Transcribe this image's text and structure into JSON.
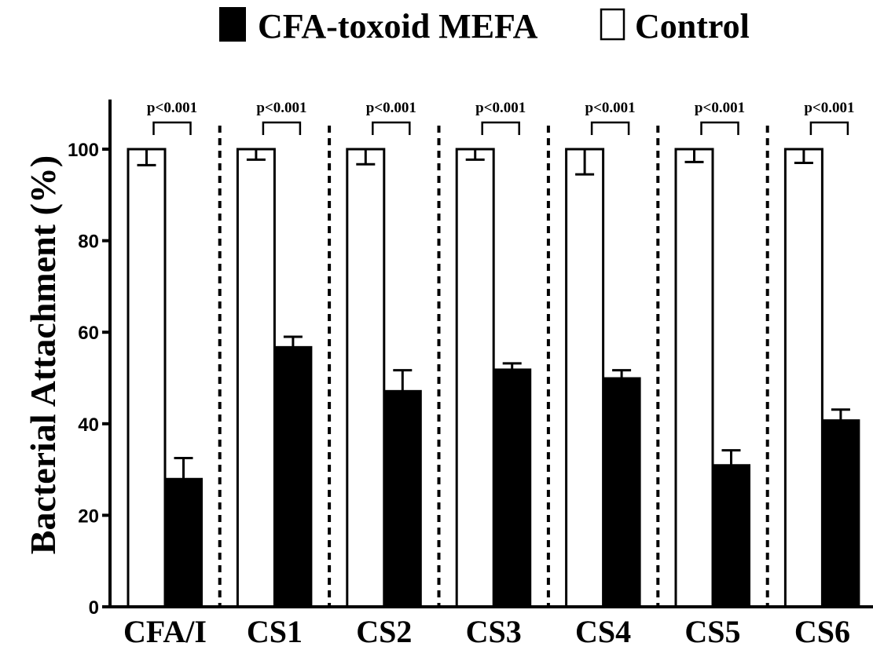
{
  "chart_data": {
    "type": "bar",
    "ylabel": "Bacterial Attachment (%)",
    "ylim": [
      0,
      110
    ],
    "yticks": [
      0,
      20,
      40,
      60,
      80,
      100
    ],
    "categories": [
      "CFA/I",
      "CS1",
      "CS2",
      "CS3",
      "CS4",
      "CS5",
      "CS6"
    ],
    "series": [
      {
        "name": "Control",
        "fill": "#ffffff",
        "values": [
          100,
          100,
          100,
          100,
          100,
          100,
          100
        ],
        "errors": [
          3.5,
          2.3,
          3.3,
          2.3,
          5.5,
          2.8,
          3.0
        ]
      },
      {
        "name": "CFA-toxoid MEFA",
        "fill": "#000000",
        "values": [
          28,
          56.8,
          47.2,
          51.9,
          50.0,
          31.0,
          40.8
        ],
        "errors": [
          4.5,
          2.2,
          4.5,
          1.3,
          1.7,
          3.2,
          2.3
        ]
      }
    ],
    "annotations": [
      "p<0.001",
      "p<0.001",
      "p<0.001",
      "p<0.001",
      "p<0.001",
      "p<0.001",
      "p<0.001"
    ],
    "legend": {
      "position": "top-center",
      "items": [
        "CFA-toxoid MEFA",
        "Control"
      ]
    },
    "grid": false
  }
}
